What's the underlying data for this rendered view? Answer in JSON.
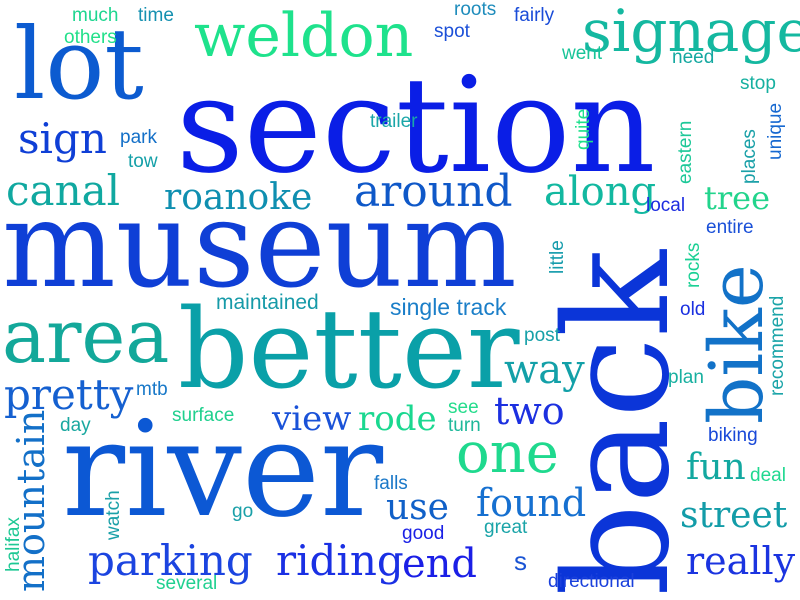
{
  "words": [
    {
      "text": "section",
      "color": "#0a1ee6"
    },
    {
      "text": "museum",
      "color": "#0f3fd6"
    },
    {
      "text": "river",
      "color": "#0c58d4"
    },
    {
      "text": "back",
      "color": "#0b35d8"
    },
    {
      "text": "better",
      "color": "#0aa0a8"
    },
    {
      "text": "lot",
      "color": "#0c5bd0"
    },
    {
      "text": "bike",
      "color": "#1272c8"
    },
    {
      "text": "area",
      "color": "#13a89a"
    },
    {
      "text": "weldon",
      "color": "#1ee28c"
    },
    {
      "text": "signage",
      "color": "#14b8a0"
    },
    {
      "text": "one",
      "color": "#1fd98e"
    },
    {
      "text": "around",
      "color": "#0f58c8"
    },
    {
      "text": "canal",
      "color": "#10a8a0"
    },
    {
      "text": "roanoke",
      "color": "#0f8fb0"
    },
    {
      "text": "along",
      "color": "#12b8a0"
    },
    {
      "text": "sign",
      "color": "#0f3fd6"
    },
    {
      "text": "pretty",
      "color": "#1560d0"
    },
    {
      "text": "parking",
      "color": "#1b44e0"
    },
    {
      "text": "riding",
      "color": "#1a30e4"
    },
    {
      "text": "end",
      "color": "#1b1fe6"
    },
    {
      "text": "mountain",
      "color": "#1370c8"
    },
    {
      "text": "way",
      "color": "#13a0a8"
    },
    {
      "text": "view",
      "color": "#1a52d8"
    },
    {
      "text": "rode",
      "color": "#1ad890"
    },
    {
      "text": "two",
      "color": "#1c30e0"
    },
    {
      "text": "found",
      "color": "#1670d0"
    },
    {
      "text": "use",
      "color": "#1060c8"
    },
    {
      "text": "fun",
      "color": "#13a8a0"
    },
    {
      "text": "street",
      "color": "#139ca8"
    },
    {
      "text": "really",
      "color": "#1b34e0"
    },
    {
      "text": "tree",
      "color": "#22d48c"
    },
    {
      "text": "single track",
      "color": "#1a7ec8"
    },
    {
      "text": "maintained",
      "color": "#169aa8"
    },
    {
      "text": "much",
      "color": "#1ed690"
    },
    {
      "text": "time",
      "color": "#1490b0"
    },
    {
      "text": "others",
      "color": "#22e08a"
    },
    {
      "text": "roots",
      "color": "#1e8cbc"
    },
    {
      "text": "fairly",
      "color": "#1a4cd8"
    },
    {
      "text": "spot",
      "color": "#1c50d8"
    },
    {
      "text": "went",
      "color": "#18c498"
    },
    {
      "text": "need",
      "color": "#14a8a0"
    },
    {
      "text": "stop",
      "color": "#16b0a0"
    },
    {
      "text": "trailer",
      "color": "#1aa6a8"
    },
    {
      "text": "park",
      "color": "#1470c8"
    },
    {
      "text": "tow",
      "color": "#14a0a8"
    },
    {
      "text": "quite",
      "color": "#1ee08c"
    },
    {
      "text": "eastern",
      "color": "#1cc898"
    },
    {
      "text": "places",
      "color": "#1aa0a8"
    },
    {
      "text": "unique",
      "color": "#1668d0"
    },
    {
      "text": "local",
      "color": "#1c2ce0"
    },
    {
      "text": "entire",
      "color": "#1a50d8"
    },
    {
      "text": "little",
      "color": "#169cac"
    },
    {
      "text": "rocks",
      "color": "#1ad094"
    },
    {
      "text": "old",
      "color": "#1a30e0"
    },
    {
      "text": "recommend",
      "color": "#1aa4a8"
    },
    {
      "text": "post",
      "color": "#16a0a8"
    },
    {
      "text": "plan",
      "color": "#18b0a0"
    },
    {
      "text": "mtb",
      "color": "#1878c8"
    },
    {
      "text": "surface",
      "color": "#20d08e"
    },
    {
      "text": "see",
      "color": "#24dc8c"
    },
    {
      "text": "turn",
      "color": "#1eb89a"
    },
    {
      "text": "day",
      "color": "#1aa8a0"
    },
    {
      "text": "biking",
      "color": "#1848d8"
    },
    {
      "text": "deal",
      "color": "#20d890"
    },
    {
      "text": "halifax",
      "color": "#1ec894"
    },
    {
      "text": "watch",
      "color": "#1aa0a8"
    },
    {
      "text": "go",
      "color": "#1aa0a8"
    },
    {
      "text": "falls",
      "color": "#1a78c8"
    },
    {
      "text": "good",
      "color": "#1a20e6"
    },
    {
      "text": "great",
      "color": "#1aa4a8"
    },
    {
      "text": "s",
      "color": "#1a54d4"
    },
    {
      "text": "several",
      "color": "#20d090"
    },
    {
      "text": "directional",
      "color": "#1a40dc"
    }
  ]
}
